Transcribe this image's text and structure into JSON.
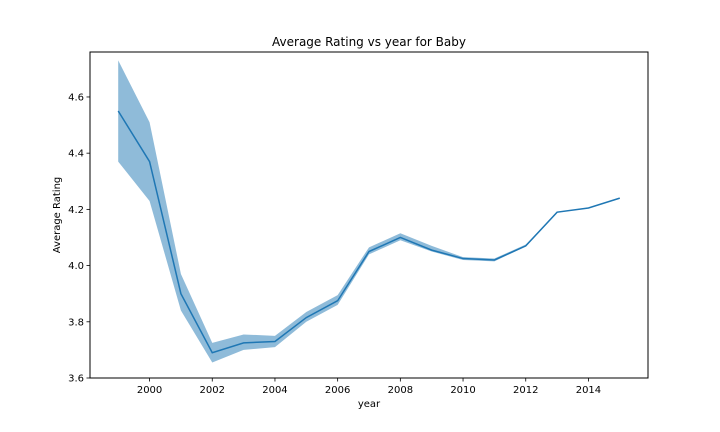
{
  "chart_data": {
    "type": "line",
    "title": "Average Rating vs year for Baby",
    "xlabel": "year",
    "ylabel": "Average Rating",
    "xlim": [
      1998.1,
      2015.9
    ],
    "ylim": [
      3.6,
      4.76
    ],
    "xticks": [
      2000,
      2002,
      2004,
      2006,
      2008,
      2010,
      2012,
      2014
    ],
    "yticks": [
      3.6,
      3.8,
      4.0,
      4.2,
      4.4,
      4.6
    ],
    "ytick_labels": [
      "3.6",
      "3.8",
      "4.0",
      "4.2",
      "4.4",
      "4.6"
    ],
    "grid": false,
    "line_color": "#1f77b4",
    "band_color": "#1f77b4",
    "x": [
      1999,
      2000,
      2001,
      2002,
      2003,
      2004,
      2005,
      2006,
      2007,
      2008,
      2009,
      2010,
      2011,
      2012,
      2013,
      2014,
      2015
    ],
    "y": [
      4.55,
      4.37,
      3.9,
      3.69,
      3.725,
      3.73,
      3.815,
      3.875,
      4.05,
      4.1,
      4.055,
      4.025,
      4.02,
      4.07,
      4.19,
      4.205,
      4.24
    ],
    "ci_lower": [
      4.37,
      4.23,
      3.84,
      3.655,
      3.7,
      3.71,
      3.8,
      3.86,
      4.04,
      4.09,
      4.05,
      4.02,
      4.015,
      4.068,
      4.19,
      4.205,
      4.24
    ],
    "ci_upper": [
      4.73,
      4.51,
      3.97,
      3.725,
      3.755,
      3.75,
      3.835,
      3.895,
      4.065,
      4.115,
      4.07,
      4.03,
      4.025,
      4.075,
      4.19,
      4.205,
      4.24
    ]
  }
}
